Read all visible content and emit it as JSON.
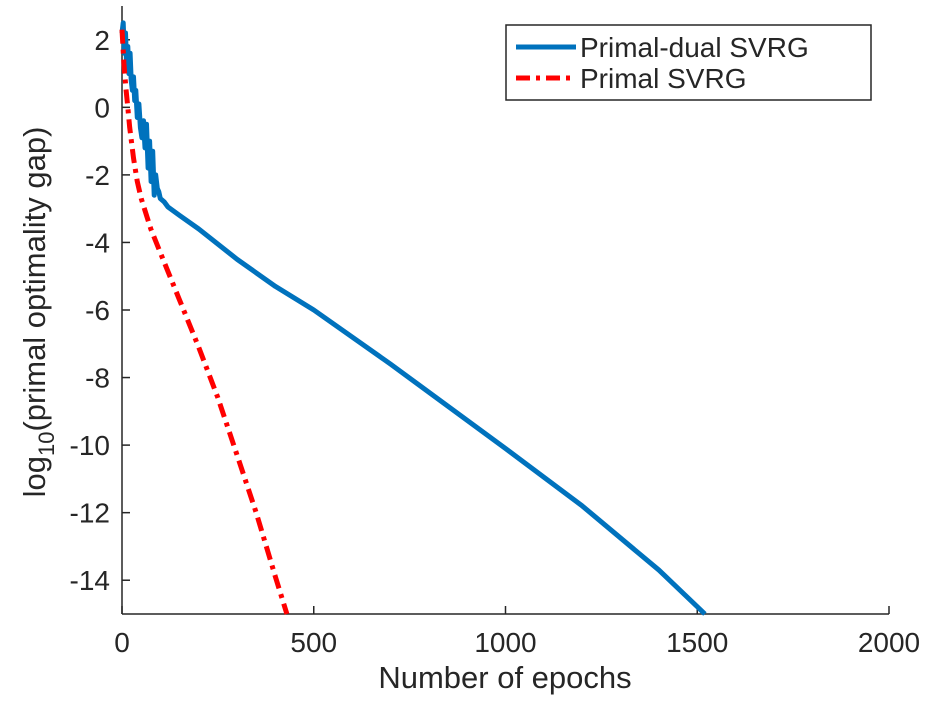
{
  "chart_data": {
    "type": "line",
    "title": "",
    "xlabel": "Number of epochs",
    "ylabel_main": "log",
    "ylabel_sub": "10",
    "ylabel_rest": "(primal optimality gap)",
    "xlim": [
      0,
      2000
    ],
    "ylim": [
      -15,
      3
    ],
    "xticks": [
      0,
      500,
      1000,
      1500,
      2000
    ],
    "yticks": [
      2,
      0,
      -2,
      -4,
      -6,
      -8,
      -10,
      -12,
      -14
    ],
    "grid": false,
    "legend_position": "top-right",
    "series": [
      {
        "name": "Primal-dual SVRG",
        "color": "#0072BD",
        "style": "solid",
        "x": [
          0,
          3,
          6,
          9,
          12,
          15,
          18,
          21,
          24,
          27,
          30,
          33,
          36,
          40,
          44,
          48,
          52,
          56,
          60,
          64,
          68,
          72,
          76,
          80,
          84,
          88,
          92,
          96,
          100,
          110,
          120,
          150,
          200,
          300,
          400,
          500,
          700,
          1000,
          1200,
          1400,
          1520
        ],
        "values": [
          2.2,
          2.5,
          1.6,
          2.2,
          1.3,
          1.8,
          1.0,
          1.6,
          0.8,
          0.5,
          0.9,
          0.2,
          0.5,
          -0.3,
          0.1,
          -0.6,
          -0.9,
          -0.4,
          -1.2,
          -0.5,
          -1.8,
          -1.0,
          -2.2,
          -1.3,
          -2.6,
          -2.0,
          -2.4,
          -2.5,
          -2.7,
          -2.8,
          -2.95,
          -3.2,
          -3.6,
          -4.5,
          -5.3,
          -6.0,
          -7.6,
          -10.1,
          -11.8,
          -13.7,
          -15.0
        ]
      },
      {
        "name": "Primal SVRG",
        "color": "#FF0000",
        "style": "dashdot",
        "x": [
          0,
          5,
          10,
          15,
          20,
          30,
          40,
          50,
          75,
          100,
          150,
          200,
          250,
          300,
          350,
          400,
          430
        ],
        "values": [
          2.3,
          1.3,
          0.6,
          0.0,
          -0.6,
          -1.5,
          -2.2,
          -2.7,
          -3.6,
          -4.3,
          -5.7,
          -7.1,
          -8.6,
          -10.3,
          -12.0,
          -13.9,
          -15.0
        ]
      }
    ]
  }
}
